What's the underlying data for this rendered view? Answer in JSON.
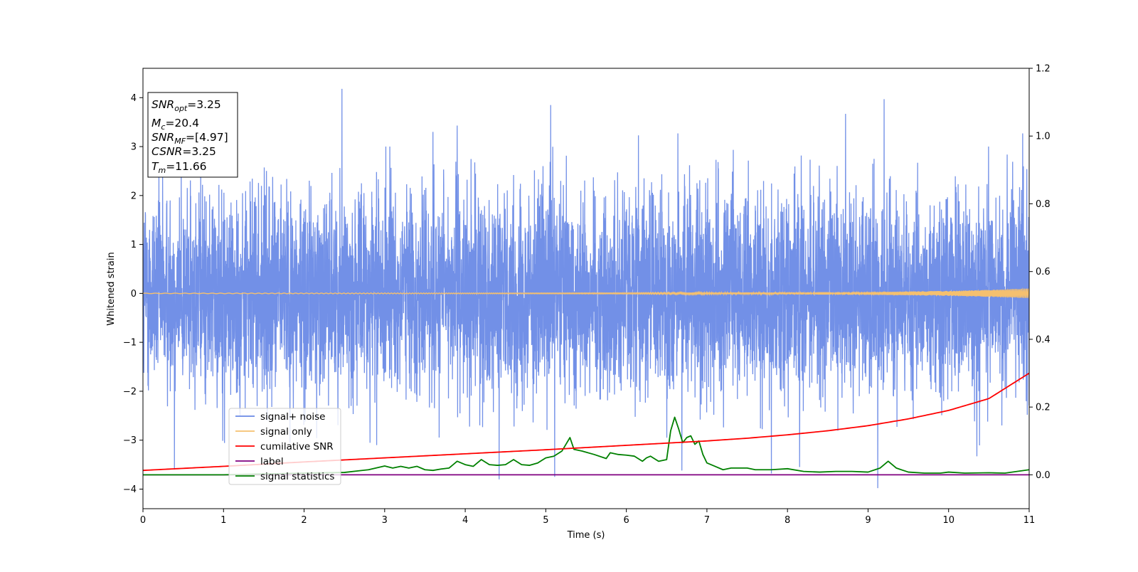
{
  "chart_data": {
    "type": "line",
    "title": "",
    "xlabel": "Time (s)",
    "ylabel": "Whitened strain",
    "xlim": [
      0,
      11
    ],
    "ylim": [
      -4.4,
      4.6
    ],
    "y2lim": [
      -0.1,
      1.2
    ],
    "x_ticks": [
      "0",
      "1",
      "2",
      "3",
      "4",
      "5",
      "6",
      "7",
      "8",
      "9",
      "10",
      "11"
    ],
    "y_ticks": [
      "−4",
      "−3",
      "−2",
      "−1",
      "0",
      "1",
      "2",
      "3",
      "4"
    ],
    "y2_ticks": [
      "0.0",
      "0.2",
      "0.4",
      "0.6",
      "0.8",
      "1.0",
      "1.2"
    ],
    "info_box": {
      "snr_opt": {
        "sym": "SNR",
        "sub": "opt",
        "value": "=3.25"
      },
      "mc": {
        "sym": "M",
        "sub": "c",
        "value": "=20.4"
      },
      "snr_mf": {
        "sym": "SNR",
        "sub": "MF",
        "value": "=[4.97]"
      },
      "csnr": {
        "sym": "CSNR",
        "value": "=3.25"
      },
      "tm": {
        "sym": "T",
        "sub": "m",
        "value": "=11.66"
      }
    },
    "legend": {
      "placement": "lower-left",
      "entries": [
        {
          "label": "signal+ noise",
          "color": "#6a8ae6"
        },
        {
          "label": "signal only",
          "color": "#f5c06f"
        },
        {
          "label": "cumilative SNR",
          "color": "#ff0000"
        },
        {
          "label": "label",
          "color": "#800080"
        },
        {
          "label": "signal statistics",
          "color": "#008000"
        }
      ]
    },
    "series": [
      {
        "name": "signal+ noise",
        "axis": "left",
        "color": "#6a8ae6",
        "note_style": "dense noise band",
        "typical_range": [
          -2.5,
          2.5
        ],
        "spikes": [
          {
            "x": 2.47,
            "y": 4.18
          },
          {
            "x": 5.06,
            "y": 3.85
          },
          {
            "x": 9.2,
            "y": 3.97
          },
          {
            "x": 8.72,
            "y": 3.67
          },
          {
            "x": 3.9,
            "y": 3.43
          },
          {
            "x": 3.6,
            "y": 3.3
          },
          {
            "x": 6.64,
            "y": 3.27
          },
          {
            "x": 10.92,
            "y": 3.27
          },
          {
            "x": 6.15,
            "y": 3.23
          },
          {
            "x": 4.42,
            "y": -3.8
          },
          {
            "x": 9.12,
            "y": -3.98
          },
          {
            "x": 5.11,
            "y": -3.75
          },
          {
            "x": 0.39,
            "y": -3.6
          },
          {
            "x": 8.15,
            "y": -3.55
          },
          {
            "x": 6.69,
            "y": -3.62
          },
          {
            "x": 7.8,
            "y": -3.68
          },
          {
            "x": 10.35,
            "y": -3.33
          },
          {
            "x": 2.9,
            "y": -3.1
          }
        ]
      },
      {
        "name": "signal only",
        "axis": "left",
        "color": "#f5c06f",
        "x": [
          0,
          6,
          8,
          9,
          10,
          10.5,
          11
        ],
        "amplitude": [
          0.005,
          0.01,
          0.02,
          0.03,
          0.05,
          0.07,
          0.1
        ]
      },
      {
        "name": "cumilative SNR",
        "axis": "right",
        "color": "#ff0000",
        "x": [
          0,
          1,
          2,
          3,
          4,
          5,
          6,
          7,
          7.5,
          8,
          8.5,
          9,
          9.5,
          10,
          10.5,
          11
        ],
        "values": [
          0.013,
          0.025,
          0.038,
          0.05,
          0.062,
          0.074,
          0.087,
          0.1,
          0.108,
          0.118,
          0.13,
          0.145,
          0.165,
          0.19,
          0.225,
          0.3
        ]
      },
      {
        "name": "label",
        "axis": "right",
        "color": "#800080",
        "x": [
          0,
          11
        ],
        "values": [
          0,
          0
        ]
      },
      {
        "name": "signal statistics",
        "axis": "right",
        "color": "#008000",
        "x": [
          0,
          1,
          2,
          2.5,
          2.8,
          3.0,
          3.1,
          3.2,
          3.3,
          3.4,
          3.5,
          3.6,
          3.7,
          3.8,
          3.9,
          4.0,
          4.1,
          4.2,
          4.3,
          4.4,
          4.5,
          4.6,
          4.7,
          4.8,
          4.9,
          5.0,
          5.1,
          5.2,
          5.25,
          5.3,
          5.35,
          5.45,
          5.6,
          5.75,
          5.8,
          5.9,
          6.0,
          6.1,
          6.2,
          6.25,
          6.3,
          6.4,
          6.5,
          6.55,
          6.6,
          6.65,
          6.7,
          6.75,
          6.8,
          6.85,
          6.9,
          6.95,
          7.0,
          7.1,
          7.2,
          7.3,
          7.5,
          7.6,
          7.8,
          8.0,
          8.2,
          8.4,
          8.6,
          8.8,
          9.0,
          9.15,
          9.25,
          9.35,
          9.5,
          9.7,
          9.9,
          10.0,
          10.2,
          10.5,
          10.7,
          11.0
        ],
        "values": [
          0.0,
          0.0,
          0.005,
          0.007,
          0.015,
          0.026,
          0.02,
          0.025,
          0.02,
          0.025,
          0.015,
          0.013,
          0.017,
          0.02,
          0.04,
          0.03,
          0.025,
          0.045,
          0.03,
          0.028,
          0.03,
          0.045,
          0.03,
          0.028,
          0.035,
          0.05,
          0.055,
          0.07,
          0.09,
          0.11,
          0.075,
          0.07,
          0.06,
          0.048,
          0.065,
          0.06,
          0.058,
          0.055,
          0.04,
          0.05,
          0.055,
          0.04,
          0.045,
          0.13,
          0.17,
          0.135,
          0.095,
          0.11,
          0.115,
          0.09,
          0.1,
          0.06,
          0.035,
          0.025,
          0.015,
          0.02,
          0.02,
          0.015,
          0.015,
          0.018,
          0.01,
          0.008,
          0.01,
          0.01,
          0.008,
          0.02,
          0.04,
          0.02,
          0.008,
          0.005,
          0.005,
          0.008,
          0.005,
          0.006,
          0.005,
          0.015
        ]
      }
    ]
  }
}
